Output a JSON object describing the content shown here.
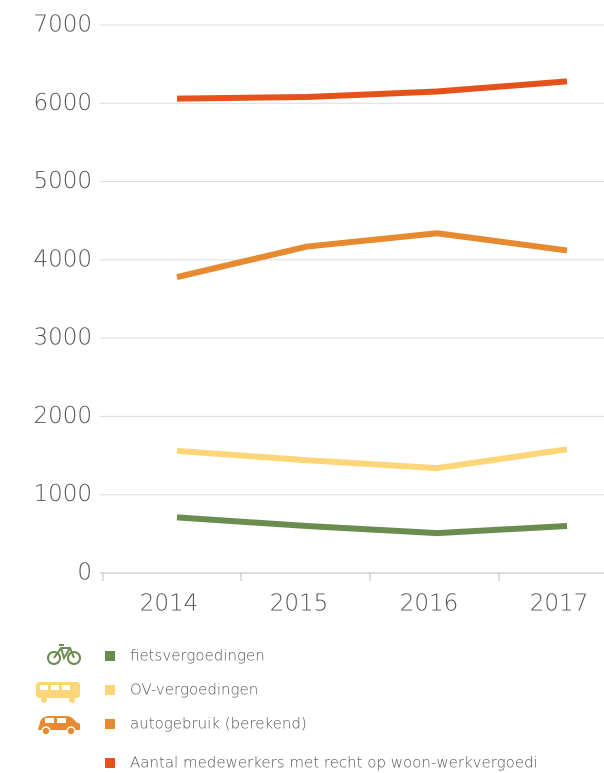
{
  "chart_data": {
    "type": "line",
    "categories": [
      "2014",
      "2015",
      "2016",
      "2017"
    ],
    "series": [
      {
        "name": "fietsvergoedingen",
        "color": "#6b8c4f",
        "values": [
          710,
          600,
          510,
          600
        ]
      },
      {
        "name": "OV-vergoedingen",
        "color": "#fdd67a",
        "values": [
          1560,
          1440,
          1340,
          1580
        ]
      },
      {
        "name": "autogebruik (berekend)",
        "color": "#e7892e",
        "values": [
          3780,
          4170,
          4340,
          4120
        ]
      },
      {
        "name": "Aantal medewerkers met recht op woon-werkvergoedi",
        "color": "#e4511b",
        "values": [
          6060,
          6080,
          6150,
          6280
        ]
      }
    ],
    "ylim": [
      0,
      7000
    ],
    "yticks": [
      0,
      1000,
      2000,
      3000,
      4000,
      5000,
      6000,
      7000
    ],
    "grid": true
  }
}
